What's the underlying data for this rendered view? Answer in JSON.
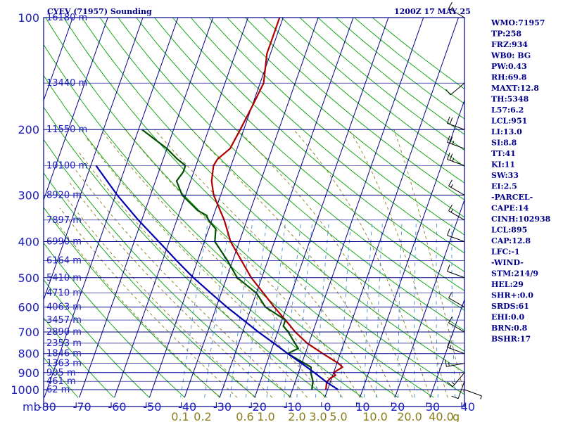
{
  "header": {
    "station": "CYEV (71957) Sounding",
    "time": "1200Z 17 MAY 25"
  },
  "indices": [
    "WMO:71957",
    "TP:258",
    "FRZ:934",
    "WB0: BG",
    "PW:0.43",
    "RH:69.8",
    "MAXT:12.8",
    "TH:5348",
    "L57:6.2",
    "LCL:951",
    "LI:13.0",
    "SI:8.8",
    "TT:41",
    "KI:11",
    "SW:33",
    "EI:2.5",
    "-PARCEL-",
    "CAPE:14",
    "CINH:102938",
    "LCL:895",
    "CAP:12.8",
    "LFC:-1",
    "-WIND-",
    "STM:214/9",
    "HEL:29",
    "SHR+:0.0",
    "SRDS:61",
    "EHI:0.0",
    "BRN:0.8",
    "BSHR:17"
  ],
  "axis_units": {
    "pressure": "mb",
    "mixing_ratio": "g"
  },
  "colors": {
    "grid": "#00008b",
    "dry_adiabat": "#00a000",
    "temperature": "#b00000",
    "dewpoint": "#005000",
    "parcel": "#0000b0",
    "moist_adiabat": "#8b7d1a",
    "mixing_ratio": "#4090d0",
    "tick_text": "#2020c0",
    "mixing_text": "#8b7d1a"
  },
  "chart_data": {
    "type": "line",
    "title": "CYEV (71957) Sounding",
    "xlim": [
      -80,
      40
    ],
    "ylim": [
      1000,
      100
    ],
    "y_scale": "log",
    "skew": true,
    "grid": true,
    "pressure_ticks": [
      100,
      200,
      300,
      400,
      500,
      600,
      700,
      800,
      900,
      1000
    ],
    "temperature_ticks": [
      -80,
      -70,
      -60,
      -50,
      -40,
      -30,
      -20,
      -10,
      0,
      10,
      20,
      30,
      40
    ],
    "height_labels": [
      {
        "p": 1000,
        "label": "62 m"
      },
      {
        "p": 950,
        "label": "461 m"
      },
      {
        "p": 900,
        "label": "905 m"
      },
      {
        "p": 850,
        "label": "1363 m"
      },
      {
        "p": 800,
        "label": "1846 m"
      },
      {
        "p": 750,
        "label": "2353 m"
      },
      {
        "p": 700,
        "label": "2890 m"
      },
      {
        "p": 650,
        "label": "3457 m"
      },
      {
        "p": 600,
        "label": "4063 m"
      },
      {
        "p": 550,
        "label": "4710 m"
      },
      {
        "p": 500,
        "label": "5410 m"
      },
      {
        "p": 450,
        "label": "6164 m"
      },
      {
        "p": 400,
        "label": "6990 m"
      },
      {
        "p": 350,
        "label": "7897 m"
      },
      {
        "p": 300,
        "label": "8920 m"
      },
      {
        "p": 250,
        "label": "10100 m"
      },
      {
        "p": 200,
        "label": "11550 m"
      },
      {
        "p": 150,
        "label": "13440 m"
      },
      {
        "p": 100,
        "label": "16180 m"
      }
    ],
    "mixing_ratio_labels": [
      "0.1",
      "0.2",
      "0.6",
      "1.0",
      "2.0",
      "3.0",
      "5.0",
      "10.0",
      "20.0",
      "40.0"
    ],
    "series": [
      {
        "name": "Temperature",
        "points": [
          [
            1000,
            -0.5
          ],
          [
            955,
            -1
          ],
          [
            930,
            -0.3
          ],
          [
            915,
            0.8
          ],
          [
            900,
            0
          ],
          [
            870,
            2
          ],
          [
            850,
            0.5
          ],
          [
            800,
            -5
          ],
          [
            750,
            -10.5
          ],
          [
            700,
            -15
          ],
          [
            650,
            -19
          ],
          [
            600,
            -23.5
          ],
          [
            550,
            -28
          ],
          [
            500,
            -33
          ],
          [
            450,
            -37.5
          ],
          [
            400,
            -42.5
          ],
          [
            350,
            -46.5
          ],
          [
            300,
            -52
          ],
          [
            275,
            -54
          ],
          [
            250,
            -55
          ],
          [
            240,
            -54.5
          ],
          [
            225,
            -52
          ],
          [
            200,
            -51
          ],
          [
            175,
            -50
          ],
          [
            150,
            -49
          ],
          [
            125,
            -51
          ],
          [
            100,
            -51
          ]
        ]
      },
      {
        "name": "Dewpoint",
        "points": [
          [
            1000,
            -4.5
          ],
          [
            950,
            -5
          ],
          [
            900,
            -6.5
          ],
          [
            870,
            -7
          ],
          [
            800,
            -15
          ],
          [
            775,
            -12.5
          ],
          [
            750,
            -14
          ],
          [
            700,
            -17
          ],
          [
            675,
            -19
          ],
          [
            650,
            -19
          ],
          [
            600,
            -26
          ],
          [
            550,
            -30
          ],
          [
            500,
            -37
          ],
          [
            450,
            -41.5
          ],
          [
            400,
            -47
          ],
          [
            370,
            -48
          ],
          [
            350,
            -51
          ],
          [
            340,
            -52
          ],
          [
            330,
            -55
          ],
          [
            300,
            -61
          ],
          [
            275,
            -64
          ],
          [
            260,
            -63
          ],
          [
            250,
            -63
          ],
          [
            240,
            -66
          ],
          [
            225,
            -70
          ],
          [
            200,
            -79
          ]
        ]
      },
      {
        "name": "Parcel",
        "points": [
          [
            1000,
            3
          ],
          [
            955,
            -1
          ],
          [
            900,
            -5.5
          ],
          [
            850,
            -10
          ],
          [
            800,
            -15
          ],
          [
            750,
            -20
          ],
          [
            700,
            -25.5
          ],
          [
            650,
            -31
          ],
          [
            600,
            -37
          ],
          [
            550,
            -43
          ],
          [
            500,
            -49.5
          ],
          [
            450,
            -56
          ],
          [
            400,
            -63
          ],
          [
            350,
            -71
          ],
          [
            300,
            -79.5
          ],
          [
            250,
            -88.5
          ]
        ]
      }
    ],
    "wind_barbs": [
      {
        "p": 1000,
        "dir": 110,
        "spd": 5
      },
      {
        "p": 950,
        "dir": 200,
        "spd": 10
      },
      {
        "p": 900,
        "dir": 220,
        "spd": 15
      },
      {
        "p": 850,
        "dir": 260,
        "spd": 15
      },
      {
        "p": 800,
        "dir": 290,
        "spd": 15
      },
      {
        "p": 700,
        "dir": 300,
        "spd": 10
      },
      {
        "p": 600,
        "dir": 300,
        "spd": 10
      },
      {
        "p": 500,
        "dir": 290,
        "spd": 10
      },
      {
        "p": 400,
        "dir": 290,
        "spd": 10
      },
      {
        "p": 350,
        "dir": 300,
        "spd": 15
      },
      {
        "p": 300,
        "dir": 300,
        "spd": 15
      },
      {
        "p": 250,
        "dir": 290,
        "spd": 25
      },
      {
        "p": 225,
        "dir": 290,
        "spd": 25
      },
      {
        "p": 200,
        "dir": 290,
        "spd": 20
      },
      {
        "p": 150,
        "dir": 230,
        "spd": 10
      },
      {
        "p": 100,
        "dir": 300,
        "spd": 15
      }
    ]
  }
}
